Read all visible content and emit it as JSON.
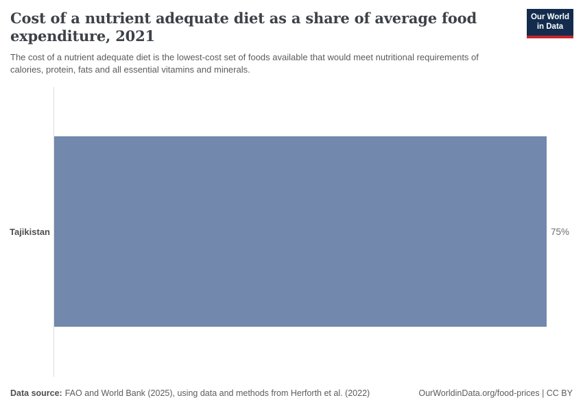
{
  "header": {
    "title_lines": [
      "Cost of a nutrient adequate diet as a share of average food",
      "expenditure, 2021"
    ],
    "subtitle_lines": [
      "The cost of a nutrient adequate diet is the lowest-cost set of foods available that would meet nutritional requirements of",
      "calories, protein, fats and all essential vitamins and minerals."
    ],
    "logo": {
      "line1": "Our World",
      "line2": "in Data",
      "background_color": "#132c4d",
      "accent_color": "#c7252b"
    }
  },
  "chart_data": {
    "type": "bar",
    "orientation": "horizontal",
    "title": "Cost of a nutrient adequate diet as a share of average food expenditure, 2021",
    "categories": [
      "Tajikistan"
    ],
    "values": [
      75
    ],
    "value_labels": [
      "75%"
    ],
    "unit": "%",
    "xlim": [
      0,
      75
    ],
    "grid": false,
    "legend": "none",
    "bar_color": "#7288ac"
  },
  "footer": {
    "source_label": "Data source:",
    "source_text": "FAO and World Bank (2025), using data and methods from Herforth et al. (2022)",
    "credit": "OurWorldinData.org/food-prices | CC BY"
  }
}
